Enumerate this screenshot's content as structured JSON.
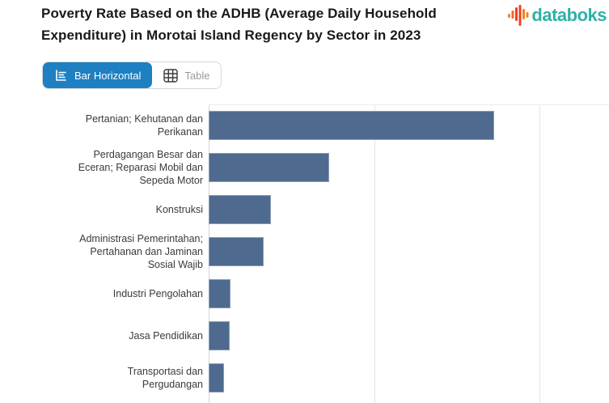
{
  "header": {
    "title": "Poverty Rate Based on the ADHB (Average Daily Household Expenditure) in Morotai Island Regency by Sector in 2023",
    "brand": "databoks"
  },
  "toolbar": {
    "bar_horizontal_label": "Bar Horizontal",
    "table_label": "Table",
    "active_view": "Bar Horizontal"
  },
  "icons": {
    "logo": "databoks-pulse-icon",
    "bar_horizontal": "bar-horizontal-chart-icon",
    "table": "table-grid-icon"
  },
  "colors": {
    "accent_blue": "#1e7fc2",
    "bar_fill": "#4e6a8e",
    "brand_teal": "#2eb1a7",
    "logo_orange": "#f58220",
    "logo_red": "#ee4123",
    "gridline": "#e4e4e4",
    "axis_line": "#d4d4d4",
    "title_text": "#191919",
    "label_text": "#3a3a3a",
    "inactive_text": "#9a9a9a"
  },
  "chart_data": {
    "type": "bar",
    "orientation": "horizontal",
    "title": "Poverty Rate Based on the ADHB (Average Daily Household Expenditure) in Morotai Island Regency by Sector in 2023",
    "categories": [
      "Pertanian; Kehutanan dan Perikanan",
      "Perdagangan Besar dan Eceran; Reparasi Mobil dan Sepeda Motor",
      "Konstruksi",
      "Administrasi Pemerintahan; Pertahanan dan Jaminan Sosial Wajib",
      "Industri Pengolahan",
      "Jasa Pendidikan",
      "Transportasi dan Pergudangan"
    ],
    "values": [
      34.5,
      14.6,
      7.5,
      6.6,
      2.6,
      2.5,
      1.9
    ],
    "units": "estimated from unlabeled gridlines (axis tick labels cut off below view)",
    "xlabel": "",
    "ylabel": "",
    "xlim": [
      0,
      48.4
    ],
    "x_gridlines": [
      0,
      20,
      40
    ],
    "grid": "vertical gridlines only",
    "legend": "none",
    "bar_color": "#4e6a8e"
  }
}
